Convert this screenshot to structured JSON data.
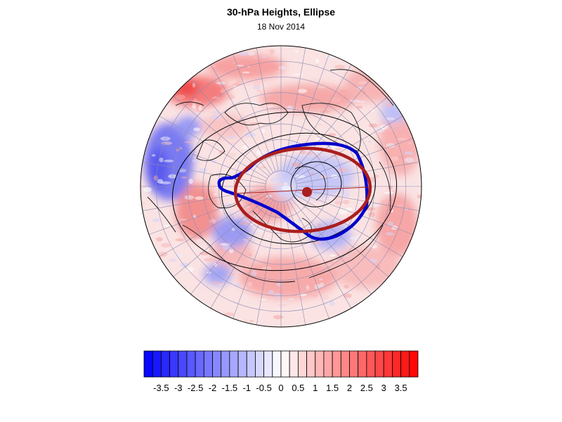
{
  "title": "30-hPa Heights, Ellipse",
  "date": "18 Nov 2014",
  "colorbar": {
    "tick_labels": [
      "-3.5",
      "-3",
      "-2.5",
      "-2",
      "-1.5",
      "-1",
      "-0.5",
      "0",
      "0.5",
      "1",
      "1.5",
      "2",
      "2.5",
      "3",
      "3.5"
    ],
    "range": [
      -4,
      4
    ],
    "colors": {
      "negative_max": "#0000ff",
      "neutral": "#ffffff",
      "positive_max": "#ff0000"
    }
  },
  "map": {
    "projection": "north polar stereographic",
    "field": "30-hPa height anomalies",
    "overlays": [
      {
        "name": "polar vortex contour",
        "color": "#0000cc"
      },
      {
        "name": "fitted ellipse",
        "color": "#aa1e1e"
      },
      {
        "name": "ellipse centroid",
        "color": "#aa1e1e"
      }
    ],
    "colors": {
      "coastline": "#111111",
      "graticule": "#8c8cb4",
      "height_contours": "#000000"
    }
  }
}
